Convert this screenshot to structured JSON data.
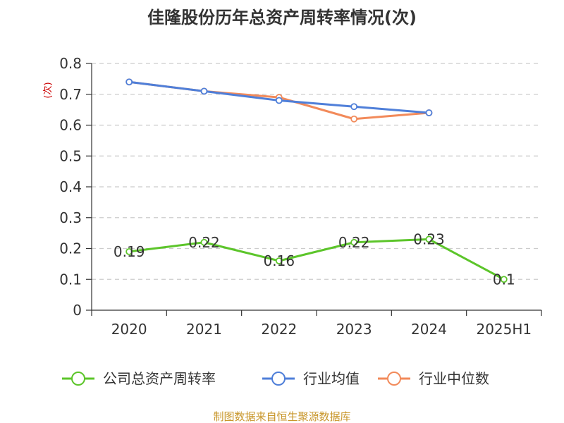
{
  "chart_data": {
    "type": "line",
    "title": "佳隆股份历年总资产周转率情况(次)",
    "ylabel": "(次)",
    "categories": [
      "2020",
      "2021",
      "2022",
      "2023",
      "2024",
      "2025H1"
    ],
    "ylim": [
      0,
      0.8
    ],
    "yticks": [
      0,
      0.1,
      0.2,
      0.3,
      0.4,
      0.5,
      0.6,
      0.7,
      0.8
    ],
    "ytick_labels": [
      "0",
      "0.1",
      "0.2",
      "0.3",
      "0.4",
      "0.5",
      "0.6",
      "0.7",
      "0.8"
    ],
    "grid": true,
    "legend_position": "bottom",
    "series": [
      {
        "name": "公司总资产周转率",
        "color": "#5cc52a",
        "values": [
          0.19,
          0.22,
          0.16,
          0.22,
          0.23,
          0.1
        ],
        "labels": [
          "0.19",
          "0.22",
          "0.16",
          "0.22",
          "0.23",
          "0.1"
        ]
      },
      {
        "name": "行业均值",
        "color": "#4f7fd9",
        "values": [
          0.74,
          0.71,
          0.68,
          0.66,
          0.64,
          null
        ],
        "labels": []
      },
      {
        "name": "行业中位数",
        "color": "#f28a5a",
        "values": [
          0.74,
          0.71,
          0.69,
          0.62,
          0.64,
          null
        ],
        "labels": []
      }
    ],
    "source": "制图数据来自恒生聚源数据库"
  }
}
